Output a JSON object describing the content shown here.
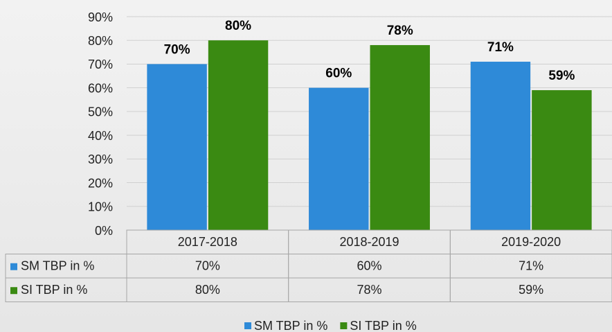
{
  "chart_data": {
    "type": "bar",
    "categories": [
      "2017-2018",
      "2018-2019",
      "2019-2020"
    ],
    "series": [
      {
        "name": "SM TBP in %",
        "color": "#2e8ad8",
        "values": [
          70,
          60,
          71
        ],
        "value_labels": [
          "70%",
          "60%",
          "71%"
        ]
      },
      {
        "name": "SI TBP in %",
        "color": "#3a8a12",
        "values": [
          80,
          78,
          59
        ],
        "value_labels": [
          "80%",
          "78%",
          "59%"
        ]
      }
    ],
    "ylim": [
      0,
      90
    ],
    "yticks": [
      {
        "value": 0,
        "label": "0%"
      },
      {
        "value": 10,
        "label": "10%"
      },
      {
        "value": 20,
        "label": "20%"
      },
      {
        "value": 30,
        "label": "30%"
      },
      {
        "value": 40,
        "label": "40%"
      },
      {
        "value": 50,
        "label": "50%"
      },
      {
        "value": 60,
        "label": "60%"
      },
      {
        "value": 70,
        "label": "70%"
      },
      {
        "value": 80,
        "label": "80%"
      },
      {
        "value": 90,
        "label": "90%"
      }
    ],
    "grid": true
  }
}
